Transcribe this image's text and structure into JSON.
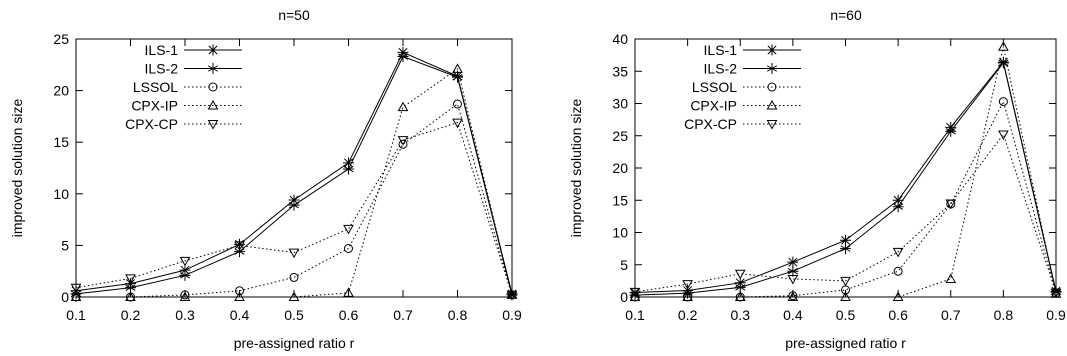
{
  "chart_data": [
    {
      "type": "line",
      "title": "n=50",
      "xlabel": "pre-assigned ratio r",
      "ylabel": "improved solution size",
      "x": [
        0.1,
        0.2,
        0.3,
        0.4,
        0.5,
        0.6,
        0.7,
        0.8,
        0.9
      ],
      "xticks": [
        "0.1",
        "0.2",
        "0.3",
        "0.4",
        "0.5",
        "0.6",
        "0.7",
        "0.8",
        "0.9"
      ],
      "yticks": [
        "0",
        "5",
        "10",
        "15",
        "20",
        "25"
      ],
      "xlim": [
        0.1,
        0.9
      ],
      "ylim": [
        0,
        25
      ],
      "legend_position": "top-left",
      "series": [
        {
          "name": "ILS-1",
          "marker": "star",
          "dash": "solid",
          "values": [
            0.6,
            1.3,
            2.6,
            5.1,
            9.4,
            13.0,
            23.7,
            21.4,
            0.3
          ]
        },
        {
          "name": "ILS-2",
          "marker": "asterisk",
          "dash": "solid",
          "values": [
            0.3,
            0.9,
            2.1,
            4.4,
            8.9,
            12.4,
            23.3,
            21.3,
            0.2
          ]
        },
        {
          "name": "LSSOL",
          "marker": "circle",
          "dash": "dotted",
          "values": [
            0.0,
            0.0,
            0.2,
            0.6,
            1.9,
            4.7,
            14.8,
            18.7,
            0.2
          ]
        },
        {
          "name": "CPX-IP",
          "marker": "triangle-up",
          "dash": "dotted",
          "values": [
            0.0,
            0.0,
            0.0,
            0.0,
            0.0,
            0.4,
            18.4,
            22.1,
            0.2
          ]
        },
        {
          "name": "CPX-CP",
          "marker": "triangle-down",
          "dash": "dotted",
          "values": [
            0.9,
            1.8,
            3.5,
            5.0,
            4.3,
            6.6,
            15.2,
            16.9,
            0.2
          ]
        }
      ]
    },
    {
      "type": "line",
      "title": "n=60",
      "xlabel": "pre-assigned ratio r",
      "ylabel": "improved solution size",
      "x": [
        0.1,
        0.2,
        0.3,
        0.4,
        0.5,
        0.6,
        0.7,
        0.8,
        0.9
      ],
      "xticks": [
        "0.1",
        "0.2",
        "0.3",
        "0.4",
        "0.5",
        "0.6",
        "0.7",
        "0.8",
        "0.9"
      ],
      "yticks": [
        "0",
        "5",
        "10",
        "15",
        "20",
        "25",
        "30",
        "35",
        "40"
      ],
      "xlim": [
        0.1,
        0.9
      ],
      "ylim": [
        0,
        40
      ],
      "legend_position": "top-left",
      "series": [
        {
          "name": "ILS-1",
          "marker": "star",
          "dash": "solid",
          "values": [
            0.7,
            1.0,
            2.2,
            5.4,
            8.8,
            15.0,
            26.3,
            36.4,
            0.9
          ]
        },
        {
          "name": "ILS-2",
          "marker": "asterisk",
          "dash": "solid",
          "values": [
            0.3,
            0.6,
            1.5,
            4.0,
            7.5,
            14.0,
            25.7,
            36.3,
            0.8
          ]
        },
        {
          "name": "LSSOL",
          "marker": "circle",
          "dash": "dotted",
          "values": [
            0.0,
            0.0,
            0.0,
            0.2,
            1.1,
            4.0,
            14.4,
            30.3,
            0.6
          ]
        },
        {
          "name": "CPX-IP",
          "marker": "triangle-up",
          "dash": "dotted",
          "values": [
            0.0,
            0.0,
            0.0,
            0.0,
            0.0,
            0.0,
            2.8,
            38.8,
            0.5
          ]
        },
        {
          "name": "CPX-CP",
          "marker": "triangle-down",
          "dash": "dotted",
          "values": [
            0.8,
            2.0,
            3.6,
            2.8,
            2.5,
            7.0,
            14.5,
            25.2,
            0.7
          ]
        }
      ]
    }
  ]
}
